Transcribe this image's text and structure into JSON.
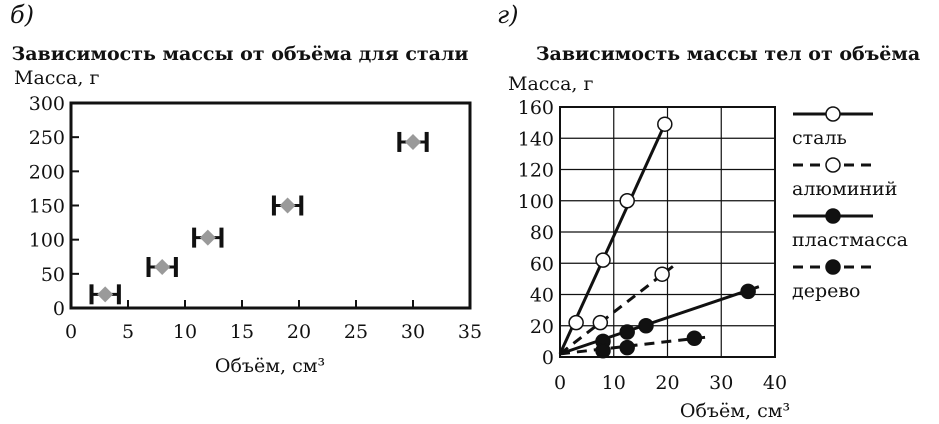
{
  "chart_data": [
    {
      "type": "scatter",
      "panel_label": "б)",
      "title": "Зависимость массы от объёма для стали",
      "xlabel": "Объём, см³",
      "ylabel": "Масса, г",
      "xlim": [
        0,
        35
      ],
      "ylim": [
        0,
        300
      ],
      "xticks": [
        "0",
        "5",
        "10",
        "15",
        "20",
        "25",
        "30",
        "35"
      ],
      "yticks": [
        "0",
        "50",
        "100",
        "150",
        "200",
        "250",
        "300"
      ],
      "grid": false,
      "marker": "diamond",
      "marker_color": "#9a9a9a",
      "error_bars": "horizontal",
      "points": [
        {
          "x": 3,
          "y": 20,
          "xerr": 1.2
        },
        {
          "x": 8,
          "y": 60,
          "xerr": 1.2
        },
        {
          "x": 12,
          "y": 103,
          "xerr": 1.2
        },
        {
          "x": 19,
          "y": 150,
          "xerr": 1.2
        },
        {
          "x": 30,
          "y": 243,
          "xerr": 1.2
        }
      ]
    },
    {
      "type": "line",
      "panel_label": "г)",
      "title": "Зависимость массы тел от объёма",
      "xlabel": "Объём, см³",
      "ylabel": "Масса, г",
      "xlim": [
        0,
        40
      ],
      "ylim": [
        0,
        160
      ],
      "xticks": [
        "0",
        "10",
        "20",
        "30",
        "40"
      ],
      "yticks": [
        "0",
        "20",
        "40",
        "60",
        "80",
        "100",
        "120",
        "140",
        "160"
      ],
      "grid": true,
      "legend_position": "right",
      "series": [
        {
          "name": "сталь",
          "style": "solid",
          "marker": "open-circle",
          "points": [
            [
              3,
              22
            ],
            [
              8,
              62
            ],
            [
              12.5,
              100
            ],
            [
              19.5,
              149
            ]
          ],
          "line": [
            [
              0,
              2
            ],
            [
              19.5,
              149
            ]
          ]
        },
        {
          "name": "алюминий",
          "style": "dashed",
          "marker": "open-circle",
          "points": [
            [
              7.5,
              22
            ],
            [
              19,
              53
            ]
          ],
          "line": [
            [
              0,
              2
            ],
            [
              21,
              58
            ]
          ]
        },
        {
          "name": "пластмасса",
          "style": "solid",
          "marker": "filled-circle",
          "points": [
            [
              8,
              10
            ],
            [
              12.5,
              16
            ],
            [
              16,
              20
            ],
            [
              35,
              42
            ]
          ],
          "line": [
            [
              0,
              2
            ],
            [
              37,
              45
            ]
          ]
        },
        {
          "name": "дерево",
          "style": "dashed",
          "marker": "filled-circle",
          "points": [
            [
              8,
              4
            ],
            [
              12.5,
              6
            ],
            [
              25,
              12
            ]
          ],
          "line": [
            [
              0,
              2
            ],
            [
              28,
              13
            ]
          ]
        }
      ]
    }
  ],
  "colors": {
    "ink": "#111111",
    "diamond": "#9a9a9a",
    "grid": "#111111"
  }
}
